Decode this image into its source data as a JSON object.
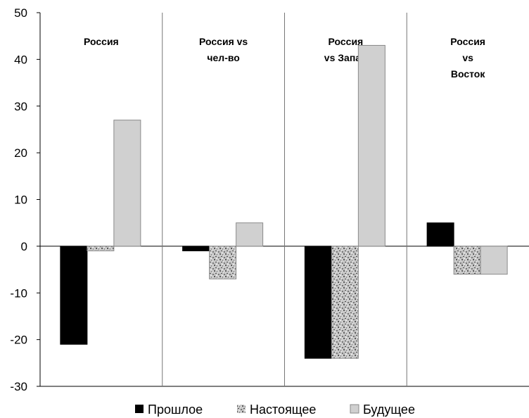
{
  "chart_data": {
    "type": "bar",
    "ylim": [
      -30,
      50
    ],
    "yticks": [
      -30,
      -20,
      -10,
      0,
      10,
      20,
      30,
      40,
      50
    ],
    "grid": false,
    "legend_position": "bottom",
    "panels": [
      {
        "title_lines": [
          "Россия"
        ]
      },
      {
        "title_lines": [
          "Россия vs",
          "чел-во"
        ]
      },
      {
        "title_lines": [
          "Россия",
          "vs Запад"
        ]
      },
      {
        "title_lines": [
          "Россия",
          "vs",
          "Восток"
        ]
      }
    ],
    "series": [
      {
        "name": "Прошлое",
        "color": "#000000",
        "values": [
          -21,
          -1,
          -24,
          5
        ]
      },
      {
        "name": "Настоящее",
        "color": "#bdbdbd",
        "pattern": "speckled",
        "values": [
          -1,
          -7,
          -24,
          -6
        ]
      },
      {
        "name": "Будущее",
        "color": "#d0d0d0",
        "values": [
          27,
          5,
          43,
          -6
        ]
      }
    ]
  }
}
